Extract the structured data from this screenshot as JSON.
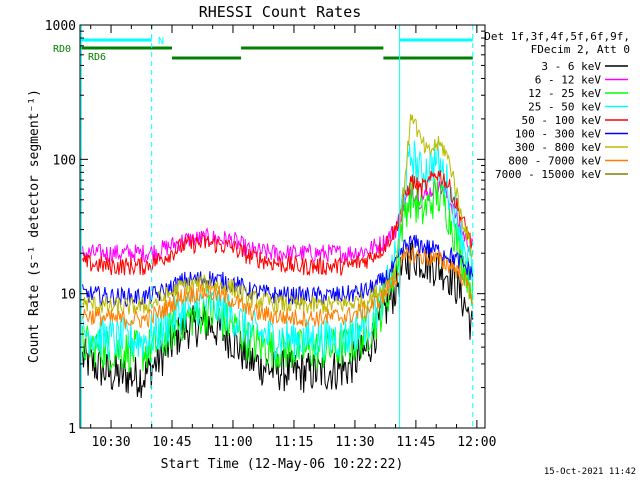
{
  "chart_data": {
    "type": "line",
    "title": "RHESSI Count Rates",
    "xlabel": "Start Time (12-May-06 10:22:22)",
    "ylabel": "Count Rate (s⁻¹ detector segment⁻¹)",
    "yscale": "log",
    "ylim": [
      1,
      1000
    ],
    "xlim": [
      "10:22:22",
      "12:02:00"
    ],
    "x_ticks": [
      "10:30",
      "10:45",
      "11:00",
      "11:15",
      "11:30",
      "11:45",
      "12:00"
    ],
    "y_ticks": [
      "1",
      "10",
      "100",
      "1000"
    ],
    "grid": false,
    "legend_position": "right",
    "legend_header": [
      "Det 1f,3f,4f,5f,6f,9f,",
      "FDecim 2, Att 0"
    ],
    "timestamp": "15-Oct-2021 11:42",
    "flags": [
      {
        "label": "N",
        "color": "#00ffff",
        "segments": [
          [
            "10:22:22",
            "10:40:00"
          ],
          [
            "11:41:00",
            "11:59:00"
          ]
        ]
      },
      {
        "label": "RD0",
        "color": "#008000",
        "segments": [
          [
            "10:22:22",
            "10:45:00"
          ],
          [
            "11:02:00",
            "11:37:00"
          ]
        ]
      },
      {
        "label": "RD6",
        "color": "#008000",
        "segments": [
          [
            "10:45:00",
            "11:02:00"
          ],
          [
            "11:37:00",
            "11:59:00"
          ]
        ]
      }
    ],
    "vlines": [
      {
        "time": "10:22:40",
        "style": "solid"
      },
      {
        "time": "10:40:00",
        "style": "dashed"
      },
      {
        "time": "11:41:00",
        "style": "solid"
      },
      {
        "time": "11:59:00",
        "style": "dashed"
      }
    ],
    "x": [
      "10:23",
      "10:30",
      "10:38",
      "10:42",
      "10:48",
      "10:54",
      "11:00",
      "11:04",
      "11:10",
      "11:16",
      "11:22",
      "11:28",
      "11:33",
      "11:37",
      "11:40",
      "11:42",
      "11:44",
      "11:46",
      "11:48",
      "11:50",
      "11:52",
      "11:54",
      "11:56",
      "11:58",
      "11:59"
    ],
    "series": [
      {
        "name": "3 - 6 keV",
        "color": "#000000",
        "values": [
          3.3,
          2.5,
          2.4,
          3.3,
          5.5,
          6.0,
          4.5,
          3.2,
          2.7,
          2.6,
          2.6,
          2.8,
          3.8,
          7.0,
          11,
          16,
          19,
          18,
          17,
          16,
          15,
          13,
          10,
          7.0,
          5.3
        ]
      },
      {
        "name": "6 - 12 keV",
        "color": "#ff00ff",
        "values": [
          20,
          20,
          20,
          21,
          25,
          26,
          25,
          21,
          20,
          20,
          20,
          20,
          21,
          24,
          30,
          45,
          60,
          50,
          55,
          65,
          58,
          45,
          30,
          24,
          22
        ]
      },
      {
        "name": "12 - 25 keV",
        "color": "#00ff00",
        "values": [
          4.2,
          3.8,
          3.7,
          4.3,
          6.5,
          7.2,
          5.8,
          4.4,
          3.9,
          3.8,
          3.8,
          4.0,
          5.0,
          8.0,
          15,
          40,
          55,
          40,
          45,
          55,
          48,
          32,
          20,
          13,
          11
        ]
      },
      {
        "name": "25 - 50 keV",
        "color": "#00ffff",
        "values": [
          5.2,
          4.6,
          4.5,
          5.2,
          7.8,
          8.5,
          6.9,
          5.3,
          4.7,
          4.6,
          4.6,
          4.8,
          6.0,
          9.5,
          18,
          60,
          110,
          80,
          85,
          100,
          75,
          50,
          30,
          18,
          15
        ]
      },
      {
        "name": "50 - 100 keV",
        "color": "#ff0000",
        "values": [
          17,
          16,
          16,
          18,
          23,
          24,
          22,
          19,
          17,
          16,
          16,
          16,
          18,
          22,
          30,
          50,
          70,
          60,
          65,
          80,
          72,
          55,
          38,
          27,
          22
        ]
      },
      {
        "name": "100 - 300 keV",
        "color": "#0000ff",
        "values": [
          10,
          9.5,
          9.4,
          10,
          12.5,
          13,
          12,
          10.5,
          9.8,
          9.6,
          9.6,
          9.8,
          10.5,
          12.5,
          16,
          22,
          24,
          23,
          22,
          21,
          20,
          19,
          17,
          15,
          14
        ]
      },
      {
        "name": "300 - 800 keV",
        "color": "#bbbb00",
        "values": [
          8.5,
          8.0,
          8.0,
          9.0,
          11.5,
          12,
          11,
          9.2,
          8.5,
          8.2,
          8.2,
          8.4,
          9.0,
          11,
          15,
          60,
          230,
          140,
          110,
          130,
          120,
          80,
          40,
          25,
          20
        ]
      },
      {
        "name": "800 - 7000 keV",
        "color": "#ff7f00",
        "values": [
          7.0,
          6.5,
          6.4,
          7.2,
          9.8,
          10.3,
          9.0,
          7.4,
          6.8,
          6.6,
          6.6,
          6.8,
          7.6,
          9.5,
          13,
          18,
          20,
          19,
          18.5,
          18,
          17,
          16,
          14,
          11,
          9.5
        ]
      },
      {
        "name": "7000 - 15000 keV",
        "color": "#808000",
        "values": [
          null,
          null,
          null,
          null,
          null,
          null,
          null,
          null,
          null,
          null,
          null,
          null,
          null,
          null,
          null,
          null,
          null,
          null,
          null,
          null,
          null,
          null,
          null,
          null,
          null
        ]
      }
    ]
  }
}
